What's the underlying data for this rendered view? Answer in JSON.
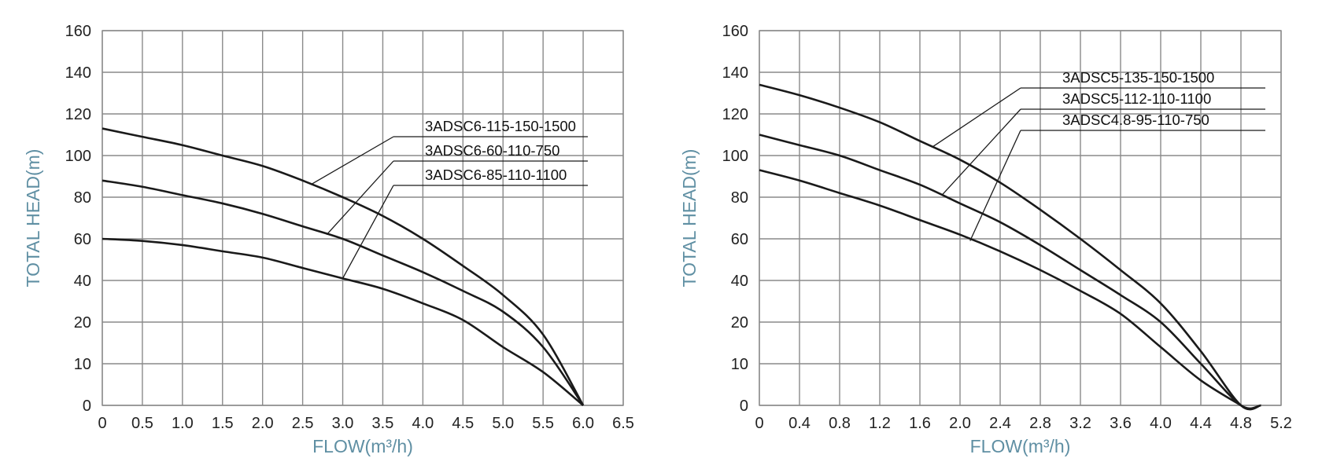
{
  "chart_data": [
    {
      "type": "line",
      "title": "",
      "xlabel": "FLOW(m³/h)",
      "ylabel": "TOTAL HEAD(m)",
      "x_ticks": [
        "0",
        "0.5",
        "1.0",
        "1.5",
        "2.0",
        "2.5",
        "3.0",
        "3.5",
        "4.0",
        "4.5",
        "5.0",
        "5.5",
        "6.0",
        "6.5"
      ],
      "x_tick_values": [
        0,
        0.5,
        1.0,
        1.5,
        2.0,
        2.5,
        3.0,
        3.5,
        4.0,
        4.5,
        5.0,
        5.5,
        6.0,
        6.5
      ],
      "y_ticks": [
        "0",
        "10",
        "20",
        "40",
        "60",
        "80",
        "100",
        "120",
        "140",
        "160"
      ],
      "xlim": [
        0,
        6.5
      ],
      "grid": true,
      "series": [
        {
          "name": "3ADSC6-115-150-1500",
          "x": [
            0,
            0.5,
            1.0,
            1.5,
            2.0,
            2.5,
            3.0,
            3.5,
            4.0,
            4.5,
            5.0,
            5.5,
            6.0
          ],
          "y": [
            113,
            109,
            105,
            100,
            95,
            88,
            80,
            71,
            60,
            47,
            33,
            17,
            0
          ],
          "leader_at": [
            2.6,
            86
          ]
        },
        {
          "name": "3ADSC6-60-110-750",
          "x": [
            0,
            0.5,
            1.0,
            1.5,
            2.0,
            2.5,
            3.0,
            3.5,
            4.0,
            4.5,
            5.0,
            5.5,
            6.0
          ],
          "y": [
            88,
            85,
            81,
            77,
            72,
            66,
            60,
            52,
            44,
            35,
            25,
            14,
            0
          ],
          "leader_at": [
            2.8,
            62
          ]
        },
        {
          "name": "3ADSC6-85-110-1100",
          "x": [
            0,
            0.5,
            1.0,
            1.5,
            2.0,
            2.5,
            3.0,
            3.5,
            4.0,
            4.5,
            5.0,
            5.5,
            6.0
          ],
          "y": [
            60,
            59,
            57,
            54,
            51,
            46,
            41,
            36,
            29,
            21,
            14,
            8,
            0
          ],
          "leader_at": [
            3.0,
            41
          ]
        }
      ]
    },
    {
      "type": "line",
      "title": "",
      "xlabel": "FLOW(m³/h)",
      "ylabel": "TOTAL HEAD(m)",
      "x_ticks": [
        "0",
        "0.4",
        "0.8",
        "1.2",
        "1.6",
        "2.0",
        "2.4",
        "2.8",
        "3.2",
        "3.6",
        "4.0",
        "4.4",
        "4.8",
        "5.2"
      ],
      "x_tick_values": [
        0,
        0.4,
        0.8,
        1.2,
        1.6,
        2.0,
        2.4,
        2.8,
        3.2,
        3.6,
        4.0,
        4.4,
        4.8,
        5.2
      ],
      "y_ticks": [
        "0",
        "10",
        "20",
        "40",
        "60",
        "80",
        "100",
        "120",
        "140",
        "160"
      ],
      "xlim": [
        0,
        5.2
      ],
      "grid": true,
      "series": [
        {
          "name": "3ADSC5-135-150-1500",
          "x": [
            0,
            0.4,
            0.8,
            1.2,
            1.6,
            2.0,
            2.4,
            2.8,
            3.2,
            3.6,
            4.0,
            4.4,
            4.8,
            5.0
          ],
          "y": [
            134,
            129,
            123,
            116,
            107,
            98,
            87,
            74,
            60,
            45,
            29,
            13,
            0,
            0
          ],
          "leader_at": [
            1.72,
            104
          ]
        },
        {
          "name": "3ADSC5-112-110-1100",
          "x": [
            0,
            0.4,
            0.8,
            1.2,
            1.6,
            2.0,
            2.4,
            2.8,
            3.2,
            3.6,
            4.0,
            4.4,
            4.8,
            5.0
          ],
          "y": [
            110,
            105,
            100,
            93,
            86,
            77,
            68,
            57,
            45,
            33,
            20,
            10,
            0,
            0
          ],
          "leader_at": [
            1.82,
            81
          ]
        },
        {
          "name": "3ADSC4.8-95-110-750",
          "x": [
            0,
            0.4,
            0.8,
            1.2,
            1.6,
            2.0,
            2.4,
            2.8,
            3.2,
            3.6,
            4.0,
            4.4,
            4.8
          ],
          "y": [
            93,
            88,
            82,
            76,
            69,
            62,
            54,
            45,
            35,
            24,
            14,
            6,
            0
          ],
          "leader_at": [
            2.1,
            59
          ]
        }
      ]
    }
  ]
}
